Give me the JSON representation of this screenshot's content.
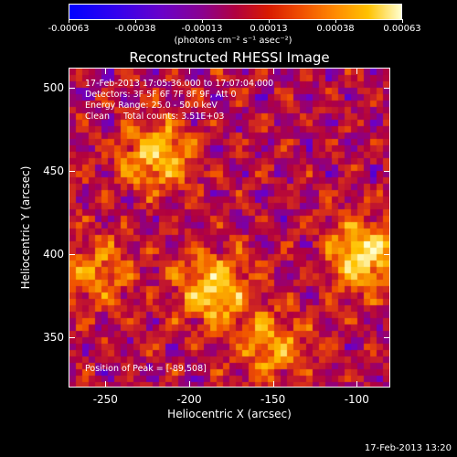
{
  "colorbar": {
    "ticks": [
      "-0.00063",
      "-0.00038",
      "-0.00013",
      "0.00013",
      "0.00038",
      "0.00063"
    ],
    "units": "(photons cm⁻² s⁻¹ asec⁻²)",
    "colormap": [
      "#0000ff",
      "#6a00c8",
      "#b00040",
      "#f05000",
      "#ffc200",
      "#ffffd0"
    ]
  },
  "title": "Reconstructed RHESSI Image",
  "info": {
    "line1": "17-Feb-2013 17:05:36.000 to 17:07:04.000",
    "line2": "Detectors: 3F 5F 6F 7F 8F 9F, Att 0",
    "line3": "Energy Range: 25.0 - 50.0 keV",
    "line4": "Clean     Total counts: 3.51E+03"
  },
  "peak": "Position of Peak = [-89,508]",
  "chart_data": {
    "type": "heatmap",
    "title": "Reconstructed RHESSI Image",
    "xlabel": "Heliocentric X (arcsec)",
    "ylabel": "Heliocentric Y (arcsec)",
    "xlim": [
      -272,
      -80
    ],
    "ylim": [
      320,
      512
    ],
    "xticks": [
      -250,
      -200,
      -150,
      -100
    ],
    "yticks": [
      350,
      400,
      450,
      500
    ],
    "xtick_labels": [
      "-250",
      "-200",
      "-150",
      "-100"
    ],
    "ytick_labels": [
      "350",
      "400",
      "450",
      "500"
    ],
    "colorbar_range": [
      -0.00063,
      0.00063
    ],
    "bright_sources": [
      {
        "x": -220,
        "y": 460,
        "intensity": 0.00055
      },
      {
        "x": -185,
        "y": 380,
        "intensity": 0.0006
      },
      {
        "x": -95,
        "y": 400,
        "intensity": 0.00063
      },
      {
        "x": -150,
        "y": 345,
        "intensity": 0.0004
      },
      {
        "x": -255,
        "y": 390,
        "intensity": 0.00035
      }
    ]
  },
  "timestamp": "17-Feb-2013 13:20"
}
